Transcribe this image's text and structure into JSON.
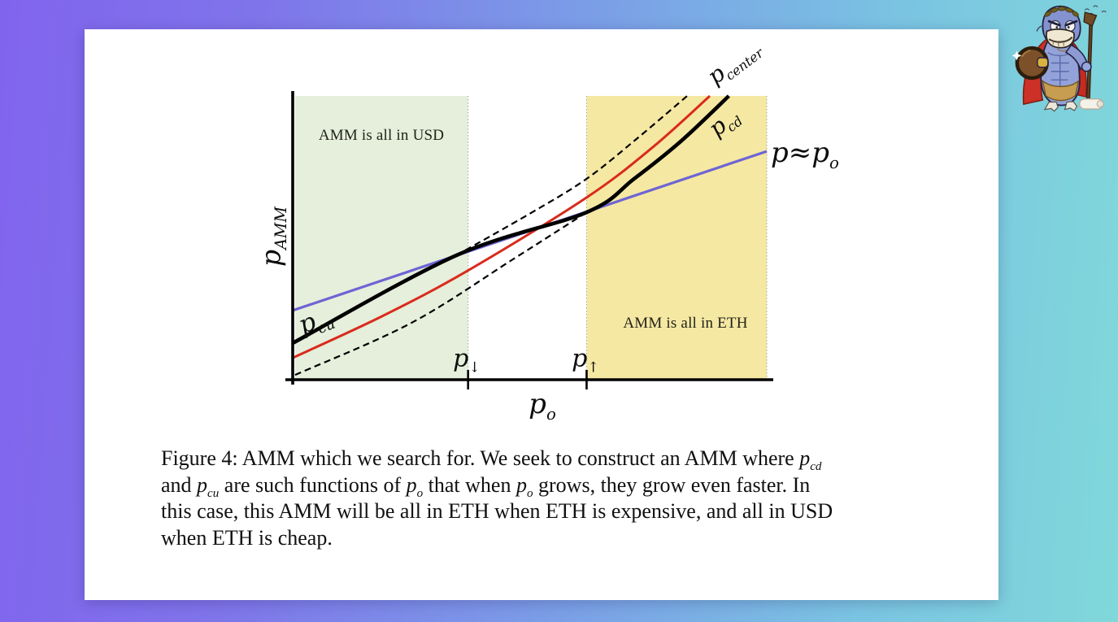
{
  "page": {
    "background_gradient": [
      "#8164ee",
      "#7b9ce7",
      "#7ac4e2",
      "#80d8da"
    ],
    "card_background": "#ffffff"
  },
  "mascot": {
    "alt": "platypus-warrior-mascot"
  },
  "labels": {
    "y_axis": [
      {
        "i": "p"
      },
      {
        "s": "AMM"
      }
    ],
    "x_axis": [
      {
        "i": "p"
      },
      {
        "s": "o"
      }
    ],
    "p_down": [
      {
        "i": "p"
      },
      {
        "u": "↓"
      }
    ],
    "p_up": [
      {
        "i": "p"
      },
      {
        "u": "↑"
      }
    ],
    "p_cu": [
      {
        "i": "p"
      },
      {
        "s": "cu"
      }
    ],
    "p_cd": [
      {
        "i": "p"
      },
      {
        "s": "cd"
      }
    ],
    "p_center": [
      {
        "i": "p"
      },
      {
        "s": "center"
      }
    ],
    "p_approx": [
      {
        "i": "p"
      },
      {
        "t": "≈"
      },
      {
        "i": "p"
      },
      {
        "s": "o"
      }
    ]
  },
  "caption": {
    "lines": [
      [
        {
          "t": "Figure 4: AMM which we search for. We seek to construct an AMM where "
        },
        {
          "i": "p"
        },
        {
          "s": "cd"
        }
      ],
      [
        {
          "t": "and "
        },
        {
          "i": "p"
        },
        {
          "s": "cu"
        },
        {
          "t": " are such functions of "
        },
        {
          "i": "p"
        },
        {
          "s": "o"
        },
        {
          "t": " that when "
        },
        {
          "i": "p"
        },
        {
          "s": "o"
        },
        {
          "t": " grows, they grow even faster. In"
        }
      ],
      [
        {
          "t": "this case, this AMM will be all in ETH when ETH is expensive, and all in USD"
        }
      ],
      [
        {
          "t": "when ETH is cheap."
        }
      ]
    ]
  },
  "chart_data": {
    "type": "line",
    "title": "",
    "xlabel": "p_o",
    "ylabel": "p_AMM",
    "x_range": [
      0,
      1
    ],
    "y_range": [
      0,
      1
    ],
    "grid": false,
    "legend": "inline-labels",
    "key_x": {
      "p_down": 0.37,
      "p_up": 0.62
    },
    "region_edges_x": [
      0.37,
      0.62,
      1.0
    ],
    "regions": [
      {
        "name": "AMM is all in USD",
        "x0": 0.005,
        "x1": 0.37,
        "color": "#e5efdb"
      },
      {
        "name": "AMM is all in ETH",
        "x0": 0.62,
        "x1": 1.0,
        "color": "#f5e8a3"
      }
    ],
    "colors": {
      "blue": "#6e64d4",
      "red": "#d92b1d",
      "black": "#000000",
      "edge": "#a2a896"
    },
    "series": [
      {
        "name": "p_cd dashed continuation left of p_up",
        "color_key": "black",
        "style": "dashed",
        "width": 2.2,
        "smooth": true,
        "points": [
          [
            0.005,
            0.017
          ],
          [
            0.25,
            0.2
          ],
          [
            0.467,
            0.427
          ],
          [
            0.62,
            0.59
          ]
        ]
      },
      {
        "name": "p_cu dashed continuation right of p_down",
        "color_key": "black",
        "style": "dashed",
        "width": 2.2,
        "smooth": true,
        "points": [
          [
            0.345,
            0.438
          ],
          [
            0.5,
            0.585
          ],
          [
            0.62,
            0.708
          ],
          [
            0.73,
            0.855
          ],
          [
            0.832,
            1.0
          ]
        ]
      },
      {
        "name": "p_center",
        "color_key": "red",
        "style": "solid",
        "width": 3,
        "smooth": true,
        "points": [
          [
            0,
            0.077
          ],
          [
            0.19,
            0.225
          ],
          [
            0.372,
            0.387
          ],
          [
            0.62,
            0.642
          ],
          [
            0.76,
            0.82
          ],
          [
            0.88,
            1.0
          ]
        ]
      },
      {
        "name": "p ≈ p_o market price",
        "color_key": "blue",
        "style": "solid",
        "width": 3.2,
        "smooth": false,
        "points": [
          [
            0,
            0.244
          ],
          [
            1,
            0.805
          ]
        ]
      },
      {
        "name": "p_AMM price curve (p_cu, then ≈p_o, then p_cd)",
        "color_key": "black",
        "style": "solid",
        "width": 4.6,
        "smooth": true,
        "points": [
          [
            0,
            0.129
          ],
          [
            0.345,
            0.438
          ],
          [
            0.62,
            0.59
          ],
          [
            0.72,
            0.708
          ],
          [
            0.82,
            0.842
          ],
          [
            0.92,
            1.0
          ]
        ]
      }
    ]
  }
}
